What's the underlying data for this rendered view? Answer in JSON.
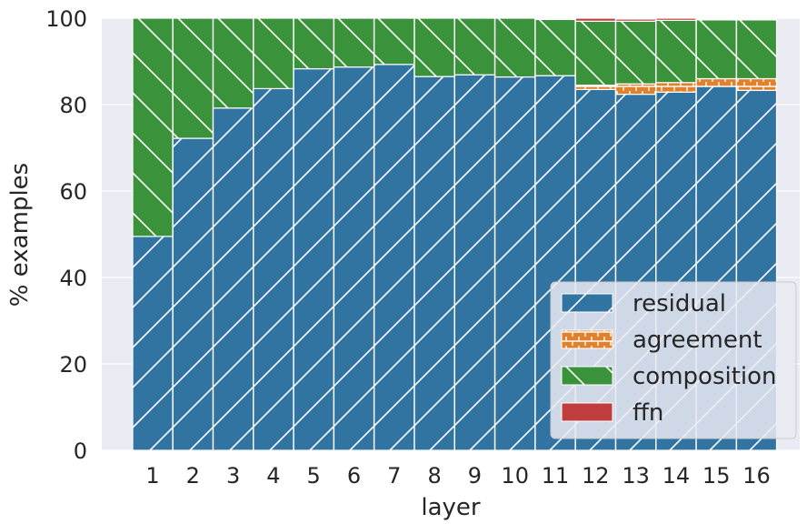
{
  "chart_data": {
    "type": "bar",
    "stacked": true,
    "categories": [
      "1",
      "2",
      "3",
      "4",
      "5",
      "6",
      "7",
      "8",
      "9",
      "10",
      "11",
      "12",
      "13",
      "14",
      "15",
      "16"
    ],
    "series": [
      {
        "name": "residual",
        "color": "#3274a1",
        "hatch": "//",
        "values": [
          49.5,
          72.2,
          79.2,
          83.7,
          88.3,
          88.7,
          89.3,
          86.5,
          86.9,
          86.4,
          86.7,
          83.5,
          82.4,
          82.9,
          84.2,
          83.3
        ]
      },
      {
        "name": "agreement",
        "color": "#e1812c",
        "hatch": "-|",
        "values": [
          0,
          0,
          0,
          0,
          0,
          0,
          0,
          0,
          0,
          0,
          0,
          1.0,
          2.4,
          2.2,
          1.8,
          2.7
        ]
      },
      {
        "name": "composition",
        "color": "#3a923a",
        "hatch": "\\\\",
        "values": [
          50.5,
          27.8,
          20.8,
          16.3,
          11.7,
          11.3,
          10.7,
          13.5,
          13.1,
          13.6,
          13.0,
          14.8,
          14.5,
          14.4,
          13.6,
          13.6
        ]
      },
      {
        "name": "ffn",
        "color": "#c03d3e",
        "hatch": "",
        "values": [
          0,
          0,
          0,
          0,
          0,
          0,
          0,
          0,
          0,
          0,
          0,
          0.7,
          0.5,
          0.5,
          0.2,
          0.1
        ]
      }
    ],
    "title": "",
    "xlabel": "layer",
    "ylabel": "% examples",
    "ylim": [
      0,
      100
    ],
    "yticks": [
      "0",
      "20",
      "40",
      "60",
      "80",
      "100"
    ],
    "grid": true,
    "legend_position": "lower-right",
    "background_color": "#eaeaf2"
  }
}
